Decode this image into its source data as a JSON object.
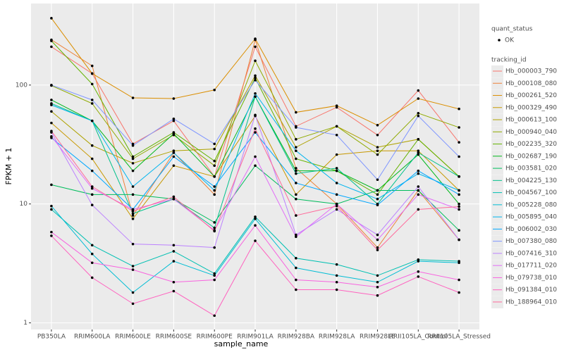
{
  "chart_data": {
    "type": "line",
    "xlabel": "sample_name",
    "ylabel": "FPKM + 1",
    "log_y": true,
    "grid": true,
    "background": "#EBEBEB",
    "point_color": "#000000",
    "shape_legend_title": "quant_status",
    "shape_legend_label": "OK",
    "legend_title": "tracking_id",
    "legend_position": "right",
    "ylim": [
      0.88,
      485
    ],
    "yticks": [
      1,
      10,
      100
    ],
    "categories": [
      "PB350LA",
      "RRIM600LA",
      "RRIM600LE",
      "RRIM600SE",
      "RRIM600PE",
      "RRIM901LA",
      "RRIM928BA",
      "RRIM928LA",
      "RRIM928LE",
      "RRII105LA_Control",
      "RRII105LA_Stressed"
    ],
    "series": [
      {
        "name": "Hb_000003_790",
        "color": "#F8766D",
        "values": [
          210,
          125,
          32,
          50,
          17,
          210,
          45,
          65,
          38,
          90,
          33
        ]
      },
      {
        "name": "Hb_000108_080",
        "color": "#EC8239",
        "values": [
          240,
          145,
          8,
          27,
          12,
          240,
          20,
          10,
          4.3,
          13,
          5
        ]
      },
      {
        "name": "Hb_000261_520",
        "color": "#DB8E00",
        "values": [
          365,
          125,
          78,
          77,
          91,
          245,
          59,
          67,
          46,
          77,
          63
        ]
      },
      {
        "name": "Hb_000329_490",
        "color": "#C79800",
        "values": [
          48,
          24,
          7.5,
          21,
          17,
          55,
          12,
          26,
          28,
          28,
          13
        ]
      },
      {
        "name": "Hb_000613_100",
        "color": "#AEA200",
        "values": [
          60,
          31,
          22,
          28,
          29,
          120,
          30,
          45,
          30,
          35,
          17
        ]
      },
      {
        "name": "Hb_000940_040",
        "color": "#8FAA00",
        "values": [
          99,
          70,
          24,
          38,
          21,
          160,
          35,
          45,
          26,
          58,
          44
        ]
      },
      {
        "name": "Hb_002235_320",
        "color": "#64B200",
        "values": [
          235,
          102,
          25,
          40,
          23,
          115,
          24,
          19,
          12,
          35,
          17
        ]
      },
      {
        "name": "Hb_002687_190",
        "color": "#00B81B",
        "values": [
          75,
          50,
          19,
          39,
          17,
          80,
          19,
          19,
          13,
          26,
          10
        ]
      },
      {
        "name": "Hb_003581_020",
        "color": "#00BD5C",
        "values": [
          14.5,
          12,
          12,
          11,
          7,
          21,
          11,
          10,
          13,
          13,
          6
        ]
      },
      {
        "name": "Hb_004225_130",
        "color": "#00C08B",
        "values": [
          70,
          50,
          8.3,
          11,
          6.3,
          80,
          18,
          20,
          10,
          27,
          17
        ]
      },
      {
        "name": "Hb_004567_100",
        "color": "#00C0B2",
        "values": [
          9,
          4.5,
          3,
          4,
          2.6,
          7.8,
          3.5,
          3.1,
          2.5,
          3.4,
          3.3
        ]
      },
      {
        "name": "Hb_005228_080",
        "color": "#00BDD4",
        "values": [
          9.6,
          3.8,
          1.8,
          3.3,
          2.5,
          7.5,
          2.9,
          2.5,
          2.2,
          3.3,
          3.2
        ]
      },
      {
        "name": "Hb_005895_040",
        "color": "#00B5EE",
        "values": [
          68,
          50,
          14,
          27,
          13,
          85,
          28,
          15,
          11,
          18,
          13
        ]
      },
      {
        "name": "Hb_006002_030",
        "color": "#00A7FF",
        "values": [
          36,
          19,
          9,
          25,
          14,
          40,
          15,
          12,
          9.8,
          19,
          12
        ]
      },
      {
        "name": "Hb_007380_080",
        "color": "#7F96FF",
        "values": [
          100,
          75,
          31,
          52,
          32,
          110,
          44,
          38,
          16,
          55,
          25
        ]
      },
      {
        "name": "Hb_007416_310",
        "color": "#BC81FF",
        "values": [
          40,
          9.8,
          4.6,
          4.5,
          4.3,
          56,
          5.5,
          9,
          5.5,
          14,
          5
        ]
      },
      {
        "name": "Hb_017711_020",
        "color": "#E26EF7",
        "values": [
          37,
          13.5,
          9,
          11,
          6,
          25,
          5.3,
          10,
          5,
          12,
          9
        ]
      },
      {
        "name": "Hb_079738_010",
        "color": "#F863DF",
        "values": [
          5.8,
          3.2,
          2.8,
          2.2,
          2.3,
          6.6,
          2.3,
          2.2,
          2,
          2.7,
          2.3
        ]
      },
      {
        "name": "Hb_091384_010",
        "color": "#FF62BF",
        "values": [
          5.4,
          2.4,
          1.45,
          1.85,
          1.15,
          4.9,
          1.9,
          1.9,
          1.7,
          2.45,
          1.8
        ]
      },
      {
        "name": "Hb_188964_010",
        "color": "#FF6A9A",
        "values": [
          41,
          14,
          8.7,
          11.5,
          5.9,
          43,
          8,
          9.6,
          4.1,
          9,
          9.5
        ]
      }
    ]
  }
}
